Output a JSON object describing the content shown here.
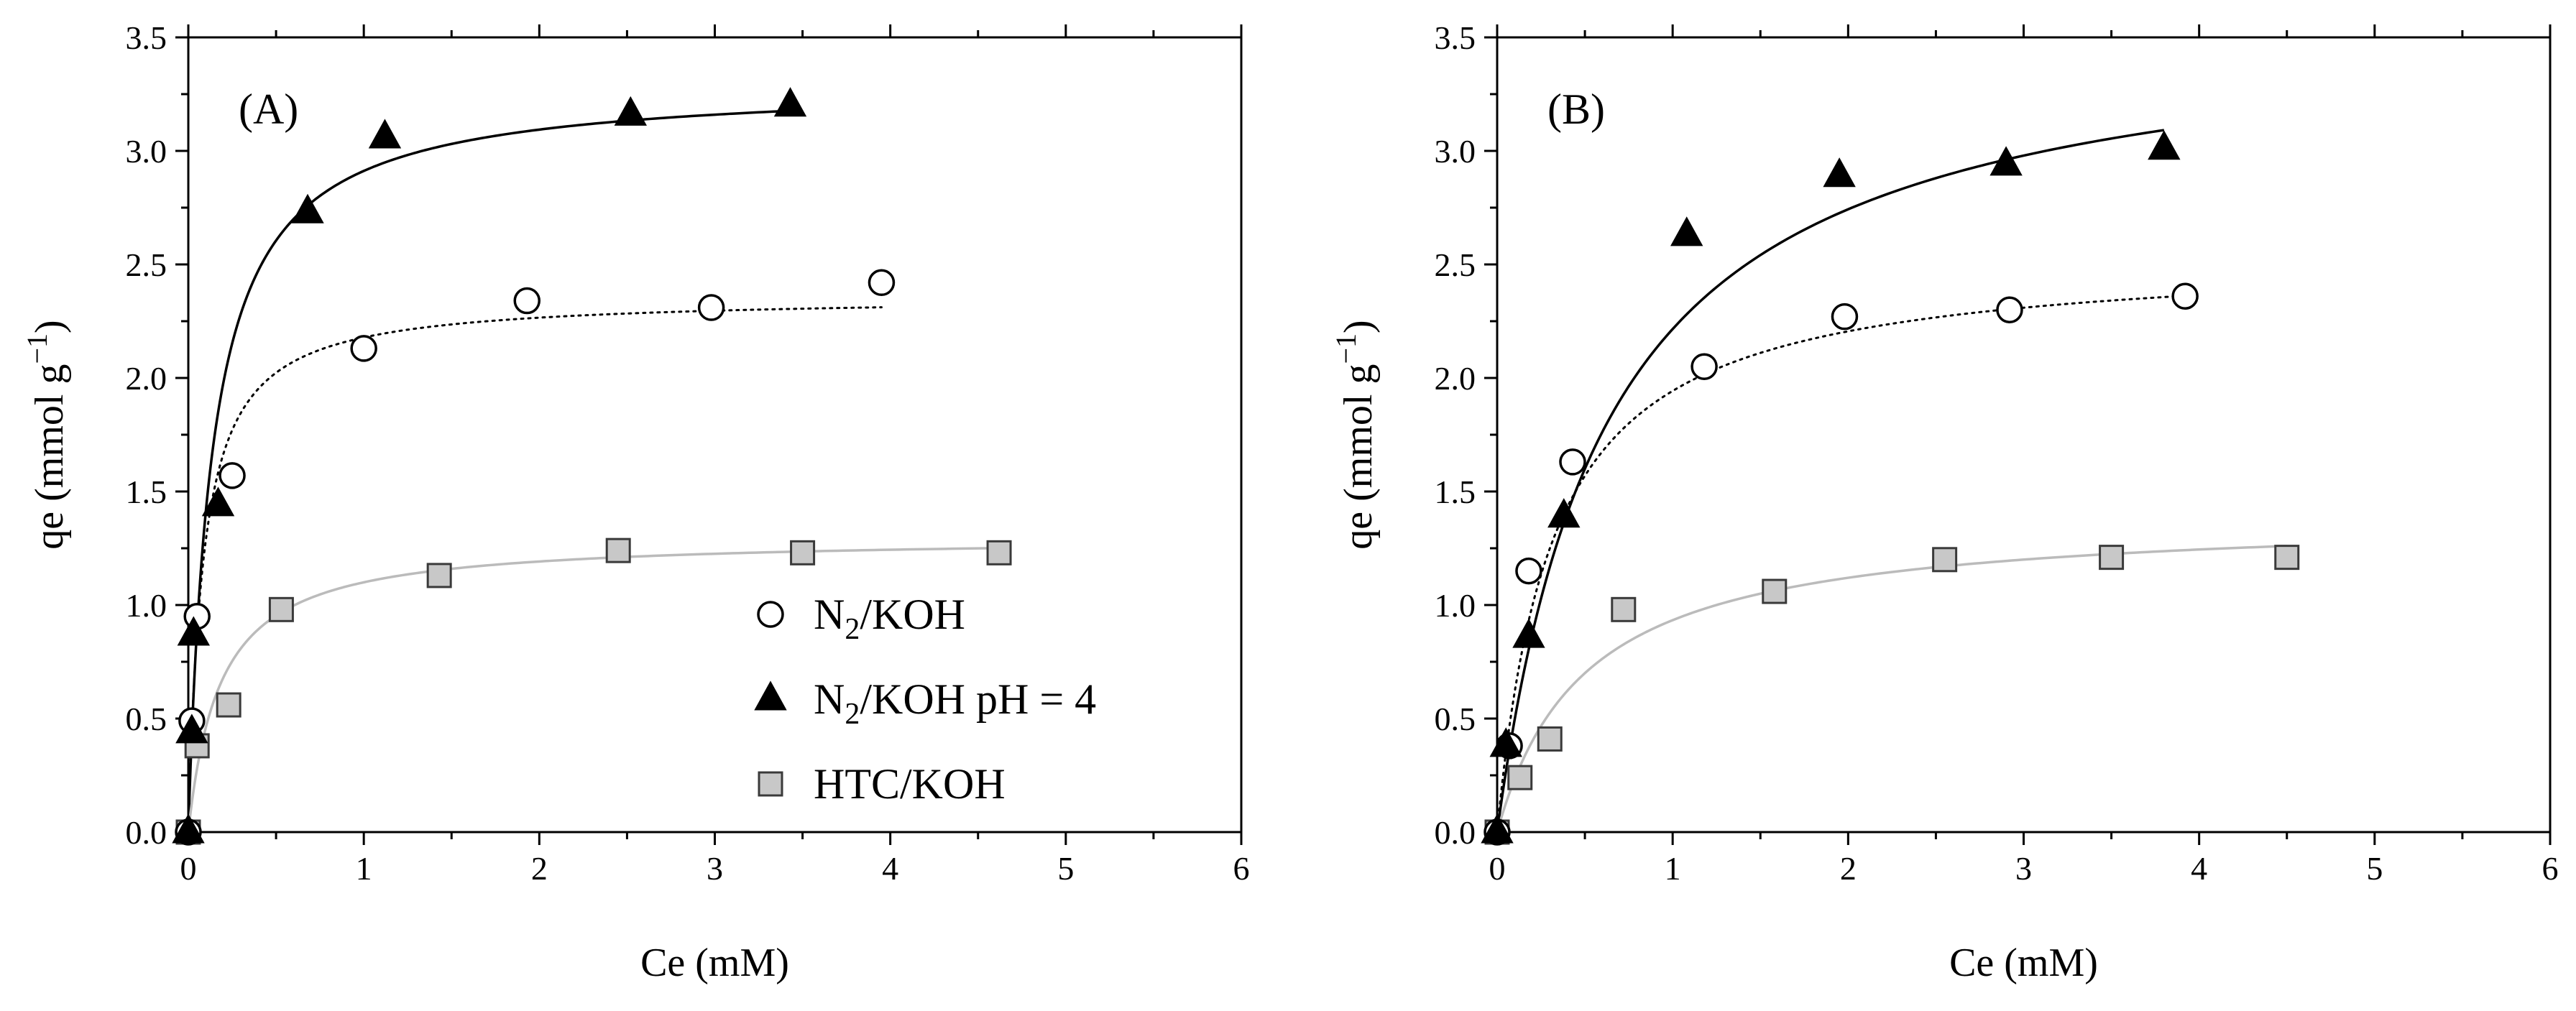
{
  "figure": {
    "legend_position": "bottom-right of panel A",
    "legend_entries": [
      {
        "series": "N2/KOH",
        "label_main": "N",
        "label_sub": "2",
        "label_rest": "/KOH",
        "marker": "open-circle"
      },
      {
        "series": "N2/KOH pH = 4",
        "label_main": "N",
        "label_sub": "2",
        "label_rest": "/KOH  pH = 4",
        "marker": "filled-triangle"
      },
      {
        "series": "HTC/KOH",
        "label_main": "HTC/KOH",
        "label_sub": "",
        "label_rest": "",
        "marker": "gray-square"
      }
    ]
  },
  "chart_data": [
    {
      "type": "scatter",
      "panel_label": "(A)",
      "xlabel": "Ce (mM)",
      "ylabel_main": "qe (mmol g",
      "ylabel_sup": "−1",
      "ylabel_close": ")",
      "xlim": [
        0,
        6
      ],
      "ylim": [
        0,
        3.5
      ],
      "x_ticks": [
        0,
        1,
        2,
        3,
        4,
        5,
        6
      ],
      "x_tick_labels": [
        "0",
        "1",
        "2",
        "3",
        "4",
        "5",
        "6"
      ],
      "y_ticks": [
        0,
        0.5,
        1,
        1.5,
        2,
        2.5,
        3,
        3.5
      ],
      "y_tick_labels": [
        "0.0",
        "0.5",
        "1.0",
        "1.5",
        "2.0",
        "2.5",
        "3.0",
        "3.5"
      ],
      "legend": true,
      "series": [
        {
          "name": "N2/KOH",
          "marker": "open-circle",
          "fit_style": "dotted",
          "fit_color": "#000000",
          "points": [
            [
              0,
              0
            ],
            [
              0.02,
              0.49
            ],
            [
              0.05,
              0.95
            ],
            [
              0.25,
              1.57
            ],
            [
              1.0,
              2.13
            ],
            [
              1.93,
              2.34
            ],
            [
              2.98,
              2.31
            ],
            [
              3.95,
              2.42
            ]
          ],
          "fit": {
            "model": "langmuir",
            "qmax": 2.36,
            "K": 12.0,
            "x_end": 3.95
          }
        },
        {
          "name": "N2/KOH pH = 4",
          "marker": "filled-triangle",
          "fit_style": "solid",
          "fit_color": "#000000",
          "points": [
            [
              0,
              0
            ],
            [
              0.02,
              0.44
            ],
            [
              0.03,
              0.87
            ],
            [
              0.17,
              1.44
            ],
            [
              0.68,
              2.73
            ],
            [
              1.12,
              3.06
            ],
            [
              2.52,
              3.16
            ],
            [
              3.43,
              3.2
            ]
          ],
          "fit": {
            "model": "langmuir",
            "qmax": 3.3,
            "K": 7.5,
            "x_end": 3.45
          }
        },
        {
          "name": "HTC/KOH",
          "marker": "gray-square",
          "fit_style": "solid",
          "fit_color": "#bbbbbb",
          "points": [
            [
              0,
              0
            ],
            [
              0.05,
              0.38
            ],
            [
              0.23,
              0.56
            ],
            [
              0.53,
              0.98
            ],
            [
              1.43,
              1.13
            ],
            [
              2.45,
              1.24
            ],
            [
              3.5,
              1.23
            ],
            [
              4.62,
              1.23
            ]
          ],
          "fit": {
            "model": "langmuir",
            "qmax": 1.3,
            "K": 5.5,
            "x_end": 4.62
          }
        }
      ]
    },
    {
      "type": "scatter",
      "panel_label": "(B)",
      "xlabel": "Ce (mM)",
      "ylabel_main": "qe (mmol g",
      "ylabel_sup": "−1",
      "ylabel_close": ")",
      "xlim": [
        0,
        6
      ],
      "ylim": [
        0,
        3.5
      ],
      "x_ticks": [
        0,
        1,
        2,
        3,
        4,
        5,
        6
      ],
      "x_tick_labels": [
        "0",
        "1",
        "2",
        "3",
        "4",
        "5",
        "6"
      ],
      "y_ticks": [
        0,
        0.5,
        1,
        1.5,
        2,
        2.5,
        3,
        3.5
      ],
      "y_tick_labels": [
        "0.0",
        "0.5",
        "1.0",
        "1.5",
        "2.0",
        "2.5",
        "3.0",
        "3.5"
      ],
      "legend": false,
      "series": [
        {
          "name": "N2/KOH",
          "marker": "open-circle",
          "fit_style": "dotted",
          "fit_color": "#000000",
          "points": [
            [
              0,
              0
            ],
            [
              0.07,
              0.38
            ],
            [
              0.18,
              1.15
            ],
            [
              0.43,
              1.63
            ],
            [
              1.18,
              2.05
            ],
            [
              1.98,
              2.27
            ],
            [
              2.92,
              2.3
            ],
            [
              3.92,
              2.36
            ]
          ],
          "fit": {
            "model": "langmuir",
            "qmax": 2.55,
            "K": 3.2,
            "x_end": 3.92
          }
        },
        {
          "name": "N2/KOH pH = 4",
          "marker": "filled-triangle",
          "fit_style": "solid",
          "fit_color": "#000000",
          "points": [
            [
              0,
              0
            ],
            [
              0.05,
              0.38
            ],
            [
              0.18,
              0.86
            ],
            [
              0.38,
              1.39
            ],
            [
              1.08,
              2.63
            ],
            [
              1.95,
              2.89
            ],
            [
              2.9,
              2.94
            ],
            [
              3.8,
              3.01
            ]
          ],
          "fit": {
            "model": "langmuir",
            "qmax": 3.6,
            "K": 1.6,
            "x_end": 3.8
          }
        },
        {
          "name": "HTC/KOH",
          "marker": "gray-square",
          "fit_style": "solid",
          "fit_color": "#bbbbbb",
          "points": [
            [
              0,
              0
            ],
            [
              0.13,
              0.24
            ],
            [
              0.3,
              0.41
            ],
            [
              0.72,
              0.98
            ],
            [
              1.58,
              1.06
            ],
            [
              2.55,
              1.2
            ],
            [
              3.5,
              1.21
            ],
            [
              4.5,
              1.21
            ]
          ],
          "fit": {
            "model": "langmuir",
            "qmax": 1.4,
            "K": 2.0,
            "x_end": 4.5
          }
        }
      ]
    }
  ]
}
